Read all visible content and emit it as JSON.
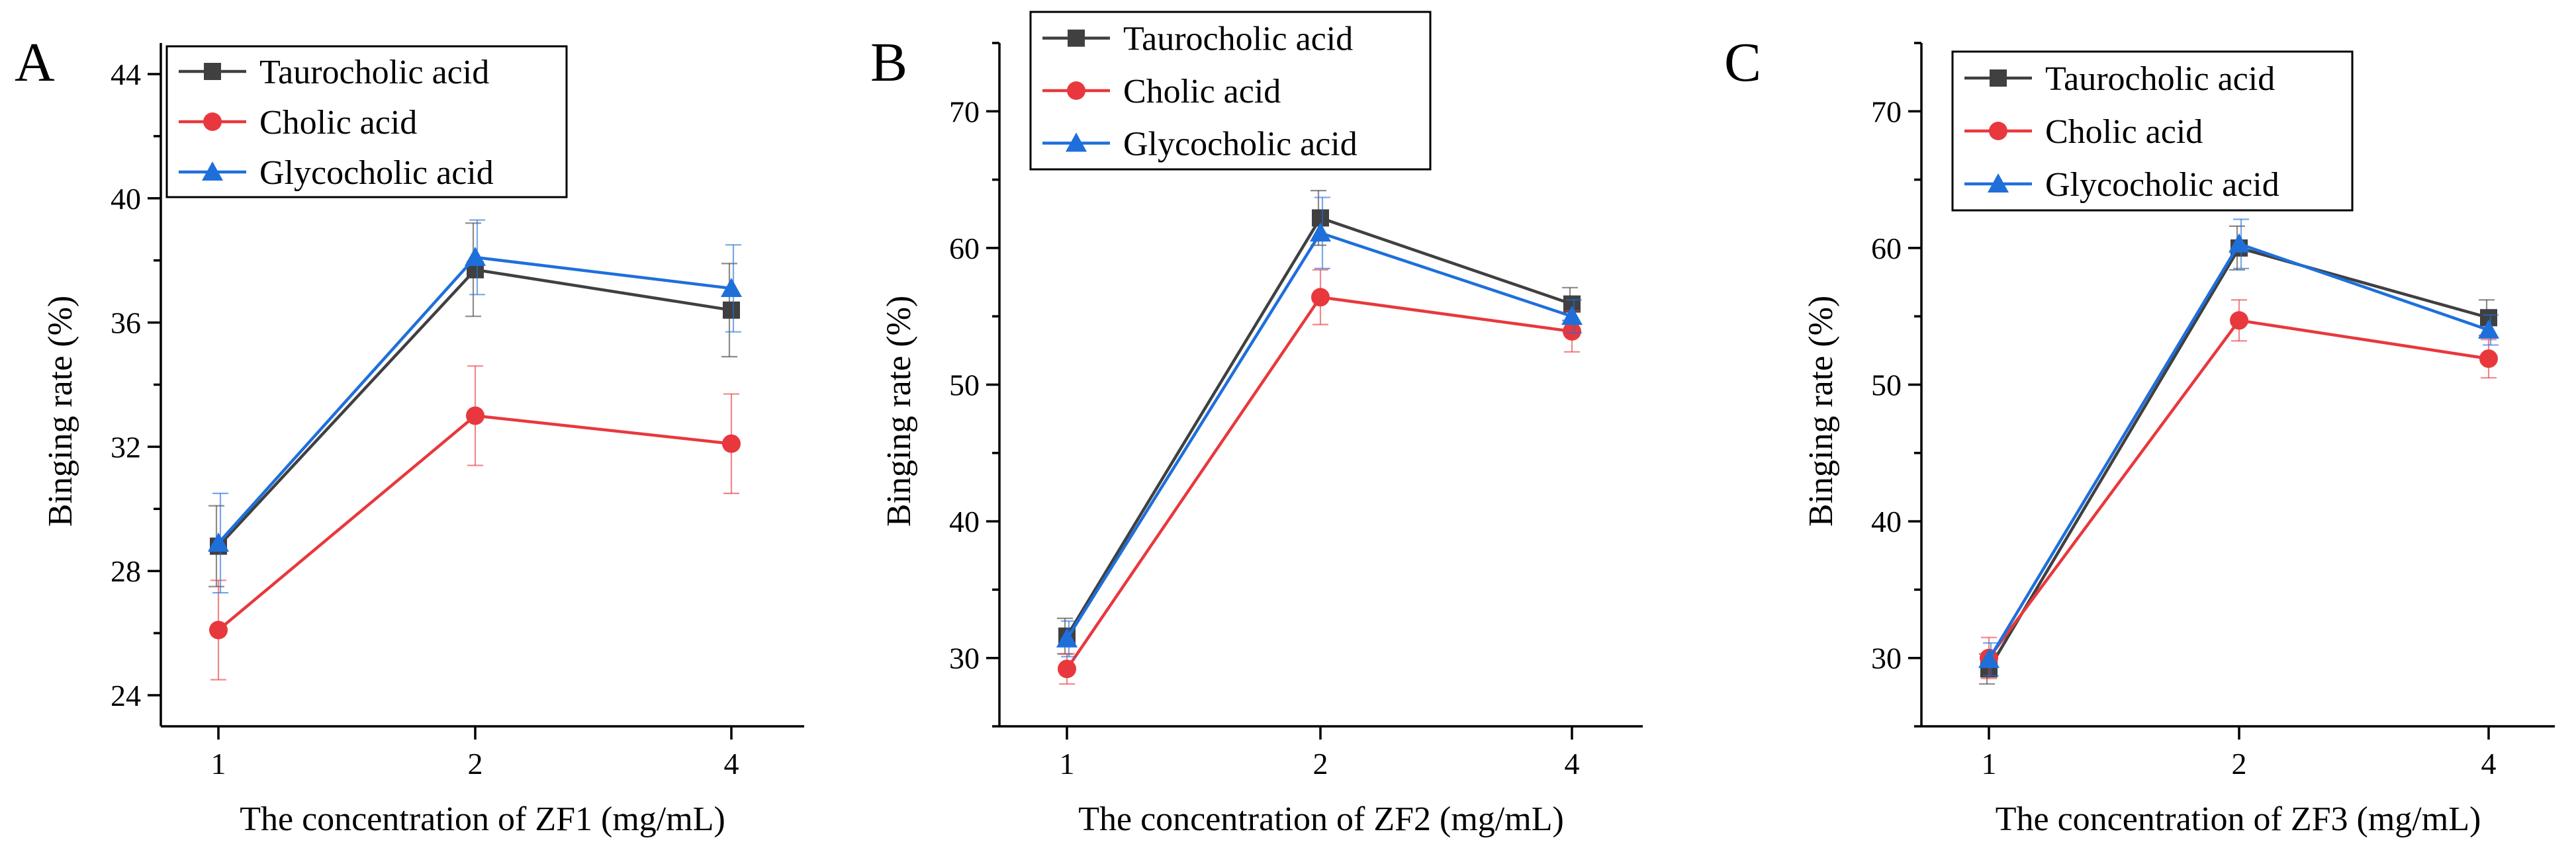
{
  "colors": {
    "taurocholic": "#404040",
    "cholic": "#e8383d",
    "glycocholic": "#1f6fdb"
  },
  "chart_data": [
    {
      "type": "line",
      "panel_label": "A",
      "title": "",
      "xlabel": "The concentration of ZF1 (mg/mL)",
      "ylabel": "Binging rate (%)",
      "categories": [
        "1",
        "2",
        "4"
      ],
      "ylim": [
        23,
        45
      ],
      "yticks": [
        "24",
        "28",
        "32",
        "36",
        "40",
        "44"
      ],
      "legend_position": "top-left",
      "series": [
        {
          "name": "Taurocholic acid",
          "marker": "square",
          "color": "#404040",
          "values": [
            28.8,
            37.7,
            36.4
          ],
          "errors": [
            1.3,
            1.5,
            1.5
          ]
        },
        {
          "name": "Cholic acid",
          "marker": "circle",
          "color": "#e8383d",
          "values": [
            26.1,
            33.0,
            32.1
          ],
          "errors": [
            1.6,
            1.6,
            1.6
          ]
        },
        {
          "name": "Glycocholic acid",
          "marker": "triangle",
          "color": "#1f6fdb",
          "values": [
            28.9,
            38.1,
            37.1
          ],
          "errors": [
            1.6,
            1.2,
            1.4
          ]
        }
      ]
    },
    {
      "type": "line",
      "panel_label": "B",
      "title": "",
      "xlabel": "The concentration of ZF2 (mg/mL)",
      "ylabel": "Binging rate (%)",
      "categories": [
        "1",
        "2",
        "4"
      ],
      "ylim": [
        25,
        75
      ],
      "yticks": [
        "30",
        "40",
        "50",
        "60",
        "70"
      ],
      "legend_position": "top-left",
      "series": [
        {
          "name": "Taurocholic acid",
          "marker": "square",
          "color": "#404040",
          "values": [
            31.6,
            62.2,
            55.9
          ],
          "errors": [
            1.3,
            2.0,
            1.2
          ]
        },
        {
          "name": "Cholic acid",
          "marker": "circle",
          "color": "#e8383d",
          "values": [
            29.2,
            56.4,
            53.9
          ],
          "errors": [
            1.1,
            2.0,
            1.5
          ]
        },
        {
          "name": "Glycocholic acid",
          "marker": "triangle",
          "color": "#1f6fdb",
          "values": [
            31.4,
            61.1,
            55.0
          ],
          "errors": [
            1.3,
            2.6,
            1.2
          ]
        }
      ]
    },
    {
      "type": "line",
      "panel_label": "C",
      "title": "",
      "xlabel": "The concentration of ZF3 (mg/mL)",
      "ylabel": "Binging rate (%)",
      "categories": [
        "1",
        "2",
        "4"
      ],
      "ylim": [
        25,
        75
      ],
      "yticks": [
        "30",
        "40",
        "50",
        "60",
        "70"
      ],
      "legend_position": "top-left",
      "series": [
        {
          "name": "Taurocholic acid",
          "marker": "square",
          "color": "#404040",
          "values": [
            29.2,
            60.0,
            54.9
          ],
          "errors": [
            1.1,
            1.6,
            1.3
          ]
        },
        {
          "name": "Cholic acid",
          "marker": "circle",
          "color": "#e8383d",
          "values": [
            30.0,
            54.7,
            51.9
          ],
          "errors": [
            1.5,
            1.5,
            1.4
          ]
        },
        {
          "name": "Glycocholic acid",
          "marker": "triangle",
          "color": "#1f6fdb",
          "values": [
            29.9,
            60.3,
            54.0
          ],
          "errors": [
            1.2,
            1.8,
            1.1
          ]
        }
      ]
    }
  ]
}
